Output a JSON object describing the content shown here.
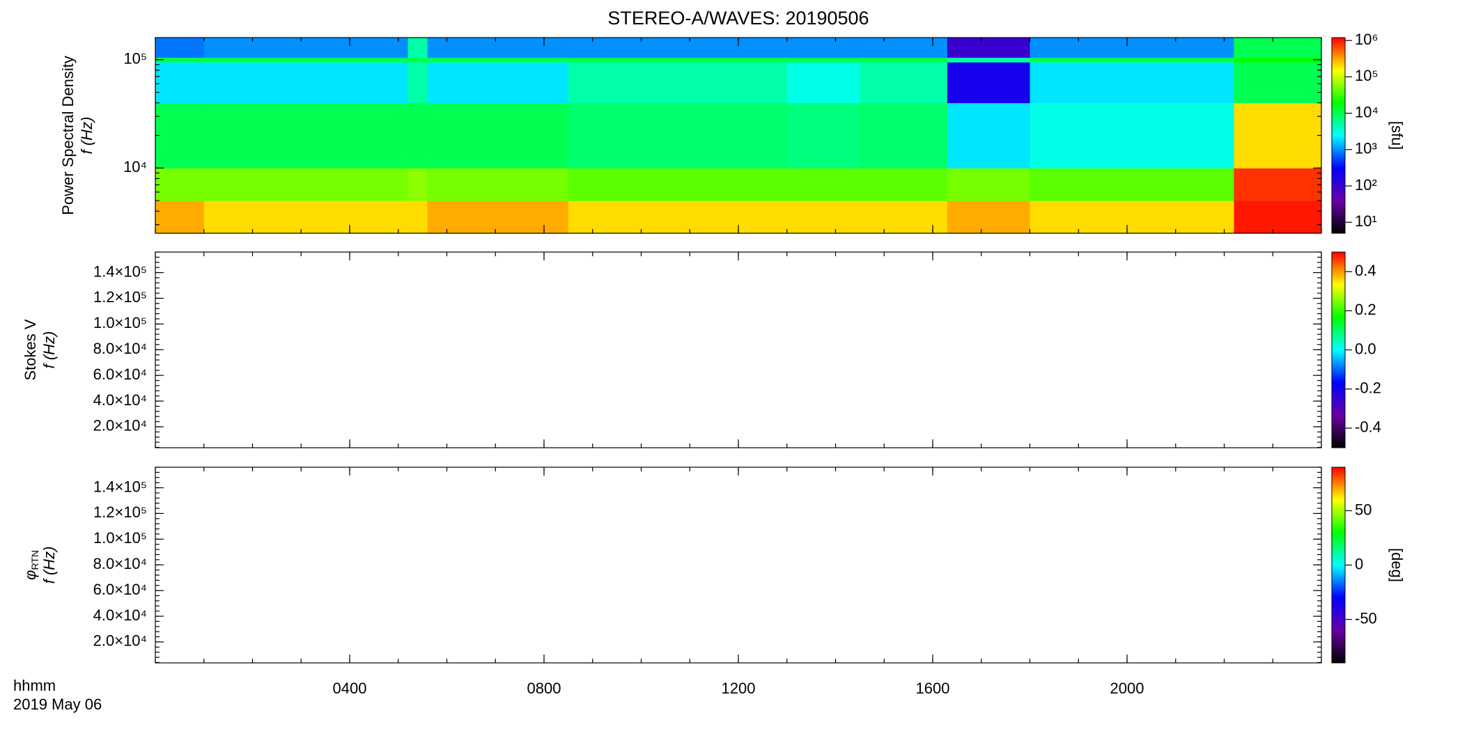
{
  "title": "STEREO-A/WAVES: 20190506",
  "x_label": "hhmm",
  "date_label": "2019 May 06",
  "chart_data": [
    {
      "type": "heatmap",
      "y_label": "Power Spectral Density",
      "y_label_2": "f (Hz)",
      "xlim": [
        0,
        24
      ],
      "xticks": [
        {
          "value": 4,
          "label": "0400"
        },
        {
          "value": 8,
          "label": "0800"
        },
        {
          "value": 12,
          "label": "1200"
        },
        {
          "value": 16,
          "label": "1600"
        },
        {
          "value": 20,
          "label": "2000"
        }
      ],
      "ylim": [
        2500,
        160000
      ],
      "ylog": true,
      "yticks": [
        {
          "value": 10000,
          "label": "10⁴"
        },
        {
          "value": 100000,
          "label": "10⁵"
        }
      ],
      "x": [
        0,
        1,
        5.2,
        5.6,
        8.5,
        13,
        14.5,
        16.3,
        18,
        22.2,
        24
      ],
      "y": [
        2500,
        5000,
        10000,
        40000,
        95000,
        105000,
        160000
      ],
      "values": [
        [
          300000,
          200000,
          200000,
          300000,
          200000,
          200000,
          200000,
          300000,
          200000,
          1000000
        ],
        [
          50000,
          50000,
          60000,
          50000,
          40000,
          40000,
          40000,
          50000,
          40000,
          800000
        ],
        [
          10000,
          10000,
          10000,
          10000,
          8000,
          7000,
          8000,
          2000,
          3000,
          200000
        ],
        [
          2000,
          2000,
          5000,
          2000,
          5000,
          3000,
          5000,
          200,
          2000,
          10000
        ],
        [
          10000,
          10000,
          10000,
          10000,
          10000,
          10000,
          10000,
          5000,
          10000,
          20000
        ],
        [
          800,
          1000,
          5000,
          1000,
          1000,
          1000,
          1000,
          100,
          1000,
          10000
        ]
      ],
      "zlim": [
        5,
        1200000
      ],
      "zlog": true,
      "zticks": [
        {
          "value": 10,
          "label": "10¹"
        },
        {
          "value": 100,
          "label": "10²"
        },
        {
          "value": 1000,
          "label": "10³"
        },
        {
          "value": 10000,
          "label": "10⁴"
        },
        {
          "value": 100000,
          "label": "10⁵"
        },
        {
          "value": 1000000,
          "label": "10⁶"
        }
      ],
      "z_label": "[sfu]",
      "colormap": [
        "#000000",
        "#6a00a8",
        "#0000ff",
        "#00ffff",
        "#00ff00",
        "#ffff00",
        "#ff0000"
      ]
    },
    {
      "type": "heatmap",
      "y_label": "Stokes V",
      "y_label_2": "f (Hz)",
      "xlim": [
        0,
        24
      ],
      "xticks": [
        {
          "value": 4,
          "label": "0400"
        },
        {
          "value": 8,
          "label": "0800"
        },
        {
          "value": 12,
          "label": "1200"
        },
        {
          "value": 16,
          "label": "1600"
        },
        {
          "value": 20,
          "label": "2000"
        }
      ],
      "ylim": [
        3700,
        156000
      ],
      "ylog": false,
      "yticks": [
        {
          "value": 20000,
          "label": "2.0×10⁴"
        },
        {
          "value": 40000,
          "label": "4.0×10⁴"
        },
        {
          "value": 60000,
          "label": "6.0×10⁴"
        },
        {
          "value": 80000,
          "label": "8.0×10⁴"
        },
        {
          "value": 100000,
          "label": "1.0×10⁵"
        },
        {
          "value": 120000,
          "label": "1.2×10⁵"
        },
        {
          "value": 140000,
          "label": "1.4×10⁵"
        }
      ],
      "zlim": [
        -0.5,
        0.5
      ],
      "zlog": false,
      "zticks": [
        -0.4,
        -0.2,
        {
          "value": 0,
          "label": "0.0"
        },
        0.2,
        0.4
      ],
      "colormap": [
        "#000000",
        "#6a00a8",
        "#0000ff",
        "#00ffff",
        "#00ff00",
        "#ffff00",
        "#ff0000"
      ]
    },
    {
      "type": "heatmap",
      "y_label": "φ",
      "y_label_sub": "RTN",
      "y_label_2": "f (Hz)",
      "xlim": [
        0,
        24
      ],
      "xticks": [
        {
          "value": 4,
          "label": "0400"
        },
        {
          "value": 8,
          "label": "0800"
        },
        {
          "value": 12,
          "label": "1200"
        },
        {
          "value": 16,
          "label": "1600"
        },
        {
          "value": 20,
          "label": "2000"
        }
      ],
      "ylim": [
        3700,
        156000
      ],
      "ylog": false,
      "yticks": [
        {
          "value": 20000,
          "label": "2.0×10⁴"
        },
        {
          "value": 40000,
          "label": "4.0×10⁴"
        },
        {
          "value": 60000,
          "label": "6.0×10⁴"
        },
        {
          "value": 80000,
          "label": "8.0×10⁴"
        },
        {
          "value": 100000,
          "label": "1.0×10⁵"
        },
        {
          "value": 120000,
          "label": "1.2×10⁵"
        },
        {
          "value": 140000,
          "label": "1.4×10⁵"
        }
      ],
      "zlim": [
        -90,
        90
      ],
      "zlog": false,
      "zticks": [
        -50,
        0,
        50
      ],
      "z_label": "[deg]",
      "colormap": [
        "#000000",
        "#6a00a8",
        "#0000ff",
        "#00ffff",
        "#00ff00",
        "#ffff00",
        "#ff0000"
      ]
    }
  ]
}
